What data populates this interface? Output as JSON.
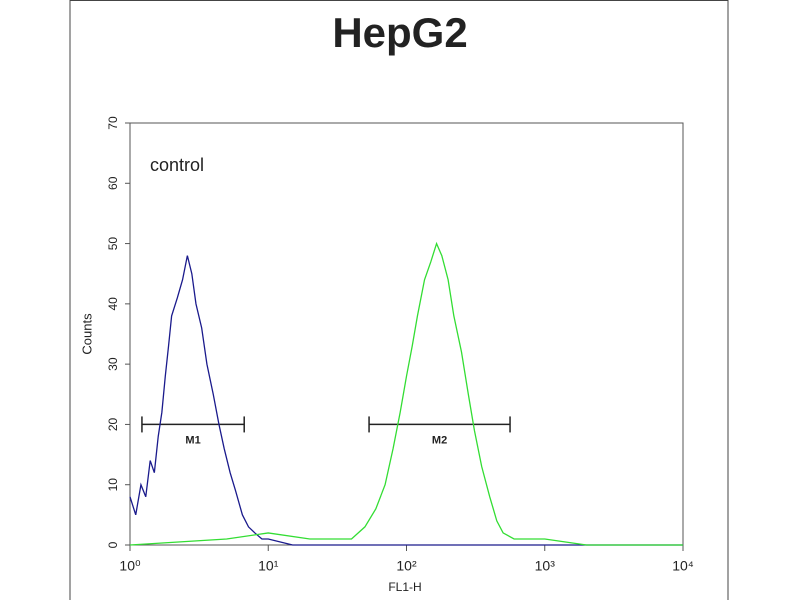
{
  "chart_data": {
    "type": "line",
    "title": "HepG2",
    "xlabel": "FL1-H",
    "ylabel": "Counts",
    "annotations": [
      {
        "text": "control"
      }
    ],
    "gates": [
      {
        "label": "M1",
        "x": [
          1.22,
          6.7
        ],
        "y": 20
      },
      {
        "label": "M2",
        "x": [
          53.6,
          561
        ],
        "y": 20
      }
    ],
    "xscale": "log",
    "xlim": [
      1,
      10000
    ],
    "xticks": [
      {
        "value": 1,
        "label": "10⁰"
      },
      {
        "value": 10,
        "label": "10¹"
      },
      {
        "value": 100,
        "label": "10²"
      },
      {
        "value": 1000,
        "label": "10³"
      },
      {
        "value": 10000,
        "label": "10⁴"
      }
    ],
    "ylim": [
      0,
      70
    ],
    "yticks": [
      0,
      10,
      20,
      30,
      40,
      50,
      60,
      70
    ],
    "series": [
      {
        "color": "#1a1a8c",
        "x": [
          1.0,
          1.1,
          1.2,
          1.3,
          1.4,
          1.5,
          1.6,
          1.7,
          1.8,
          1.9,
          2.0,
          2.2,
          2.4,
          2.6,
          2.8,
          3.0,
          3.3,
          3.6,
          4.0,
          4.4,
          4.8,
          5.3,
          5.8,
          6.5,
          7.2,
          8,
          9,
          10,
          15,
          30,
          100,
          1000,
          10000
        ],
        "values": [
          8,
          5,
          10,
          8,
          14,
          12,
          18,
          22,
          28,
          33,
          38,
          41,
          44,
          48,
          45,
          40,
          36,
          30,
          25,
          20,
          16,
          12,
          9,
          5,
          3,
          2,
          1,
          1,
          0,
          0,
          0,
          0,
          0
        ]
      },
      {
        "color": "#33dd33",
        "x": [
          1,
          5,
          10,
          20,
          40,
          50,
          60,
          70,
          80,
          90,
          100,
          110,
          120,
          135,
          150,
          165,
          180,
          200,
          220,
          250,
          280,
          310,
          350,
          400,
          450,
          500,
          600,
          1000,
          2000,
          10000
        ],
        "values": [
          0,
          1,
          2,
          1,
          1,
          3,
          6,
          10,
          16,
          22,
          28,
          33,
          38,
          44,
          47,
          50,
          48,
          44,
          38,
          32,
          25,
          19,
          13,
          8,
          4,
          2,
          1,
          1,
          0,
          0
        ]
      }
    ]
  }
}
